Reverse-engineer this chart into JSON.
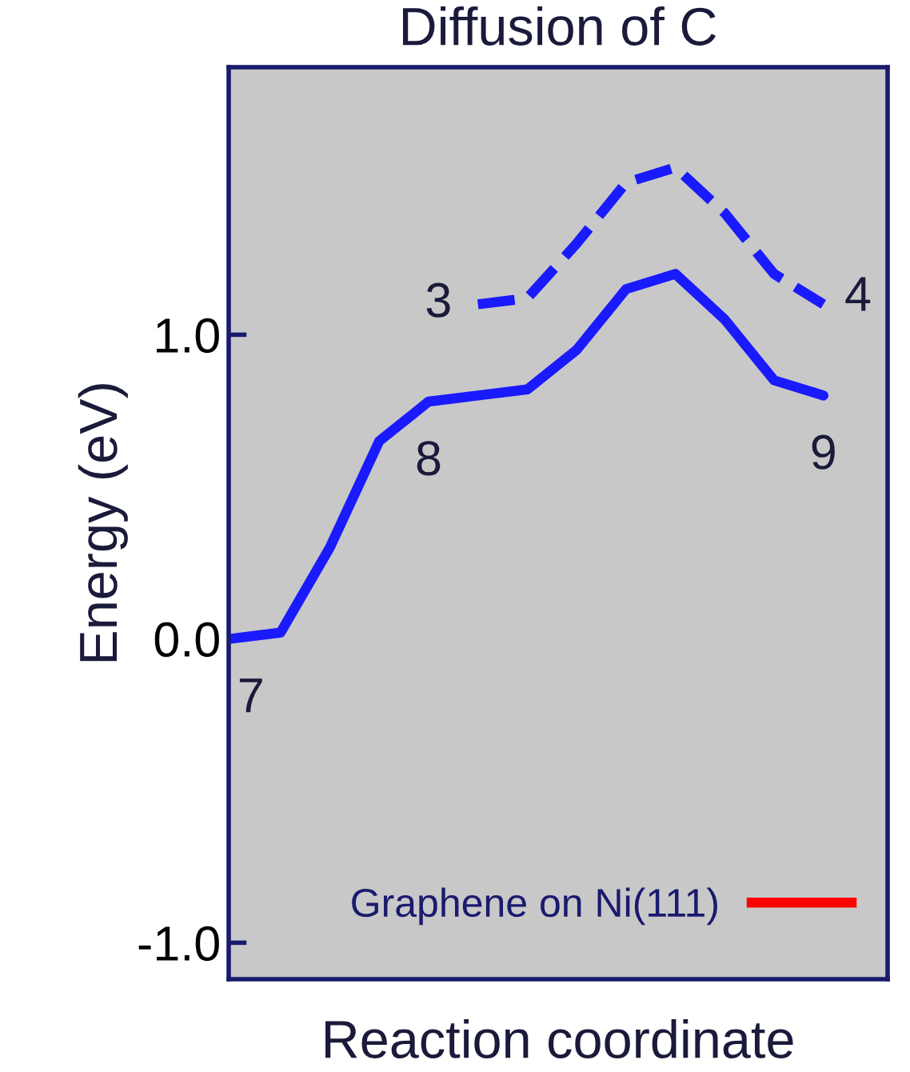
{
  "chart_data": {
    "type": "line",
    "title": "Diffusion of C",
    "xlabel": "Reaction coordinate",
    "ylabel": "Energy (eV)",
    "categories": [
      null,
      null,
      null,
      null,
      null,
      null,
      null,
      null,
      null,
      null,
      null,
      null,
      null
    ],
    "series": [
      {
        "color": "#1a1aff",
        "line_style": "solid",
        "values": [
          0,
          0.02,
          0.3,
          0.65,
          0.78,
          0.8,
          0.82,
          0.95,
          1.15,
          1.2,
          1.05,
          0.85,
          0.8
        ]
      },
      {
        "color": "#1a1aff",
        "line_style": "dashed",
        "values": [
          null,
          null,
          null,
          null,
          null,
          1.1,
          1.12,
          1.3,
          1.5,
          1.55,
          1.4,
          1.2,
          1.1
        ]
      },
      {
        "name": "Graphene on Ni(111)",
        "color": "#ff0000",
        "line_style": "solid",
        "values": [
          null,
          null,
          null,
          null,
          null,
          null,
          null,
          null,
          null,
          null,
          null,
          null,
          null
        ]
      }
    ],
    "ylim": [
      -1.12,
      1.88
    ],
    "yticks": [
      {
        "value": -1,
        "label": "-1.0"
      },
      {
        "value": 0,
        "label": "0.0"
      },
      {
        "value": 1,
        "label": "1.0"
      }
    ],
    "annotations": [
      "7",
      "8",
      "9",
      "3",
      "4"
    ],
    "tick_labels": "y",
    "grid": false,
    "legend": "bottom right"
  }
}
